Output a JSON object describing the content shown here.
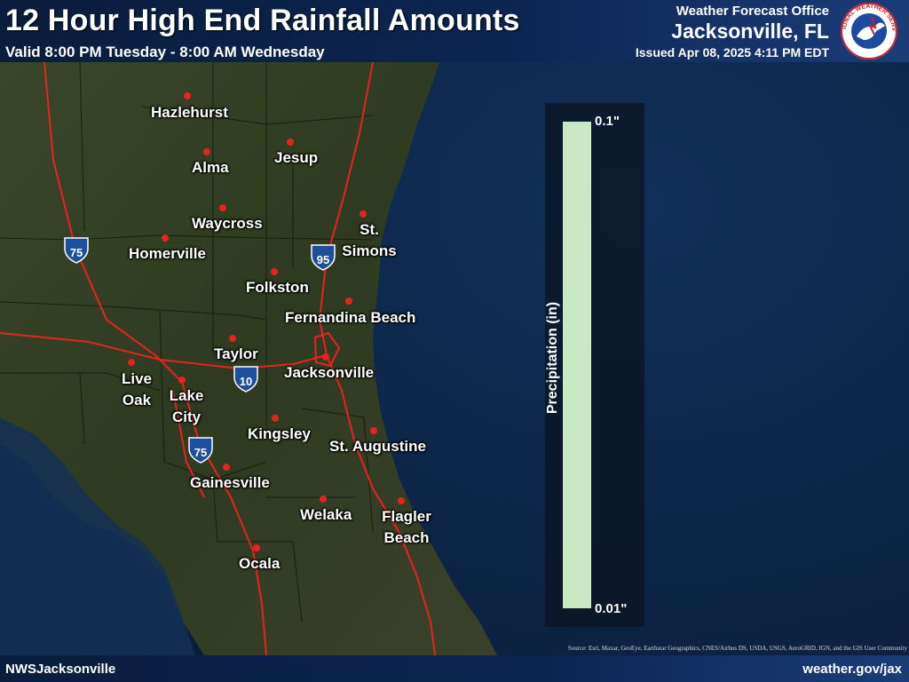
{
  "header": {
    "title": "12 Hour High End Rainfall Amounts",
    "valid": "Valid 8:00 PM Tuesday - 8:00 AM Wednesday",
    "wfo_label": "Weather Forecast Office",
    "office": "Jacksonville, FL",
    "issued": "Issued Apr 08, 2025 4:11 PM EDT",
    "logo_text": "NATIONAL WEATHER SERVICE"
  },
  "map": {
    "cities": [
      {
        "name": "Hazlehurst"
      },
      {
        "name": "Jesup"
      },
      {
        "name": "Alma"
      },
      {
        "name": "Waycross"
      },
      {
        "name": "St. Simons"
      },
      {
        "name": "Homerville"
      },
      {
        "name": "Folkston"
      },
      {
        "name": "Fernandina Beach"
      },
      {
        "name": "Taylor"
      },
      {
        "name": "Jacksonville"
      },
      {
        "name": "Live Oak"
      },
      {
        "name": "Lake City"
      },
      {
        "name": "Kingsley"
      },
      {
        "name": "St. Augustine"
      },
      {
        "name": "Gainesville"
      },
      {
        "name": "Welaka"
      },
      {
        "name": "Flagler Beach"
      },
      {
        "name": "Ocala"
      }
    ],
    "interstates": [
      "75",
      "95",
      "10",
      "75"
    ],
    "colors": {
      "city_dot": "#e8231e",
      "roads": "#e8231e",
      "land": "#2c3a1e",
      "ocean": "#0d2545"
    }
  },
  "legend": {
    "title": "Precipitation (in)",
    "max": "0.1\"",
    "min": "0.01\"",
    "bar_color": "#c9e9c4"
  },
  "footer": {
    "left": "NWSJacksonville",
    "right": "weather.gov/jax",
    "credit": "Source: Esri, Maxar, GeoEye, Earthstar Geographics, CNES/Airbus DS, USDA, USGS, AeroGRID, IGN, and the GIS User Community"
  }
}
